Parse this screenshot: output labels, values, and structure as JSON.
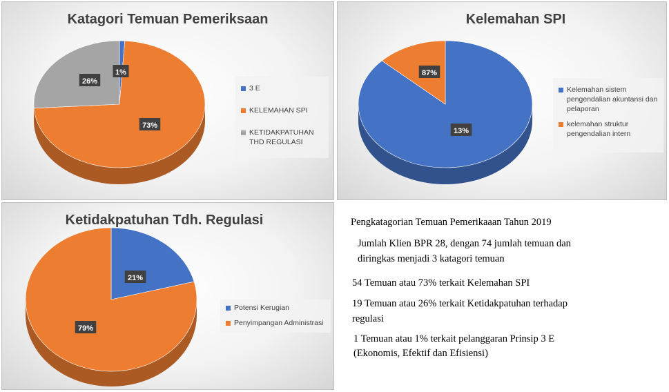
{
  "chart_data": [
    {
      "type": "pie",
      "title": "Katagori Temuan Pemeriksaan",
      "categories": [
        "3 E",
        "KELEMAHAN SPI",
        "KETIDAKPATUHAN THD REGULASI"
      ],
      "values": [
        1,
        73,
        26
      ],
      "data_labels": [
        "1%",
        "73%",
        "26%"
      ],
      "colors": [
        "#4472C4",
        "#ED7D31",
        "#A5A5A5"
      ],
      "legend": "right"
    },
    {
      "type": "pie",
      "title": "Kelemahan SPI",
      "categories": [
        "Kelemahan sistem pengendalian akuntansi dan pelaporan",
        "kelemahan struktur pengendalian intern"
      ],
      "values": [
        87,
        13
      ],
      "data_labels": [
        "87%",
        "13%"
      ],
      "colors": [
        "#4472C4",
        "#ED7D31"
      ],
      "legend": "right"
    },
    {
      "type": "pie",
      "title": "Ketidakpatuhan Tdh. Regulasi",
      "categories": [
        "Potensi Kerugian",
        "Penyimpangan Administrasi"
      ],
      "values": [
        21,
        79
      ],
      "data_labels": [
        "21%",
        "79%"
      ],
      "colors": [
        "#4472C4",
        "#ED7D31"
      ],
      "legend": "right"
    }
  ],
  "summary": {
    "heading": "Pengkatagorian Temuan Pemerikaaan Tahun 2019",
    "line1a": "Jumlah Klien BPR 28, dengan 74 jumlah temuan dan",
    "line1b": "diringkas menjadi 3 katagori temuan",
    "line2": "54 Temuan atau 73% terkait Kelemahan SPI",
    "line3a": "19 Temuan  atau 26% terkait Ketidakpatuhan terhadap",
    "line3b": "regulasi",
    "line4a": "1 Temuan atau 1% terkait pelanggaran Prinsip 3 E",
    "line4b": "(Ekonomis, Efektif dan Efisiensi)"
  }
}
